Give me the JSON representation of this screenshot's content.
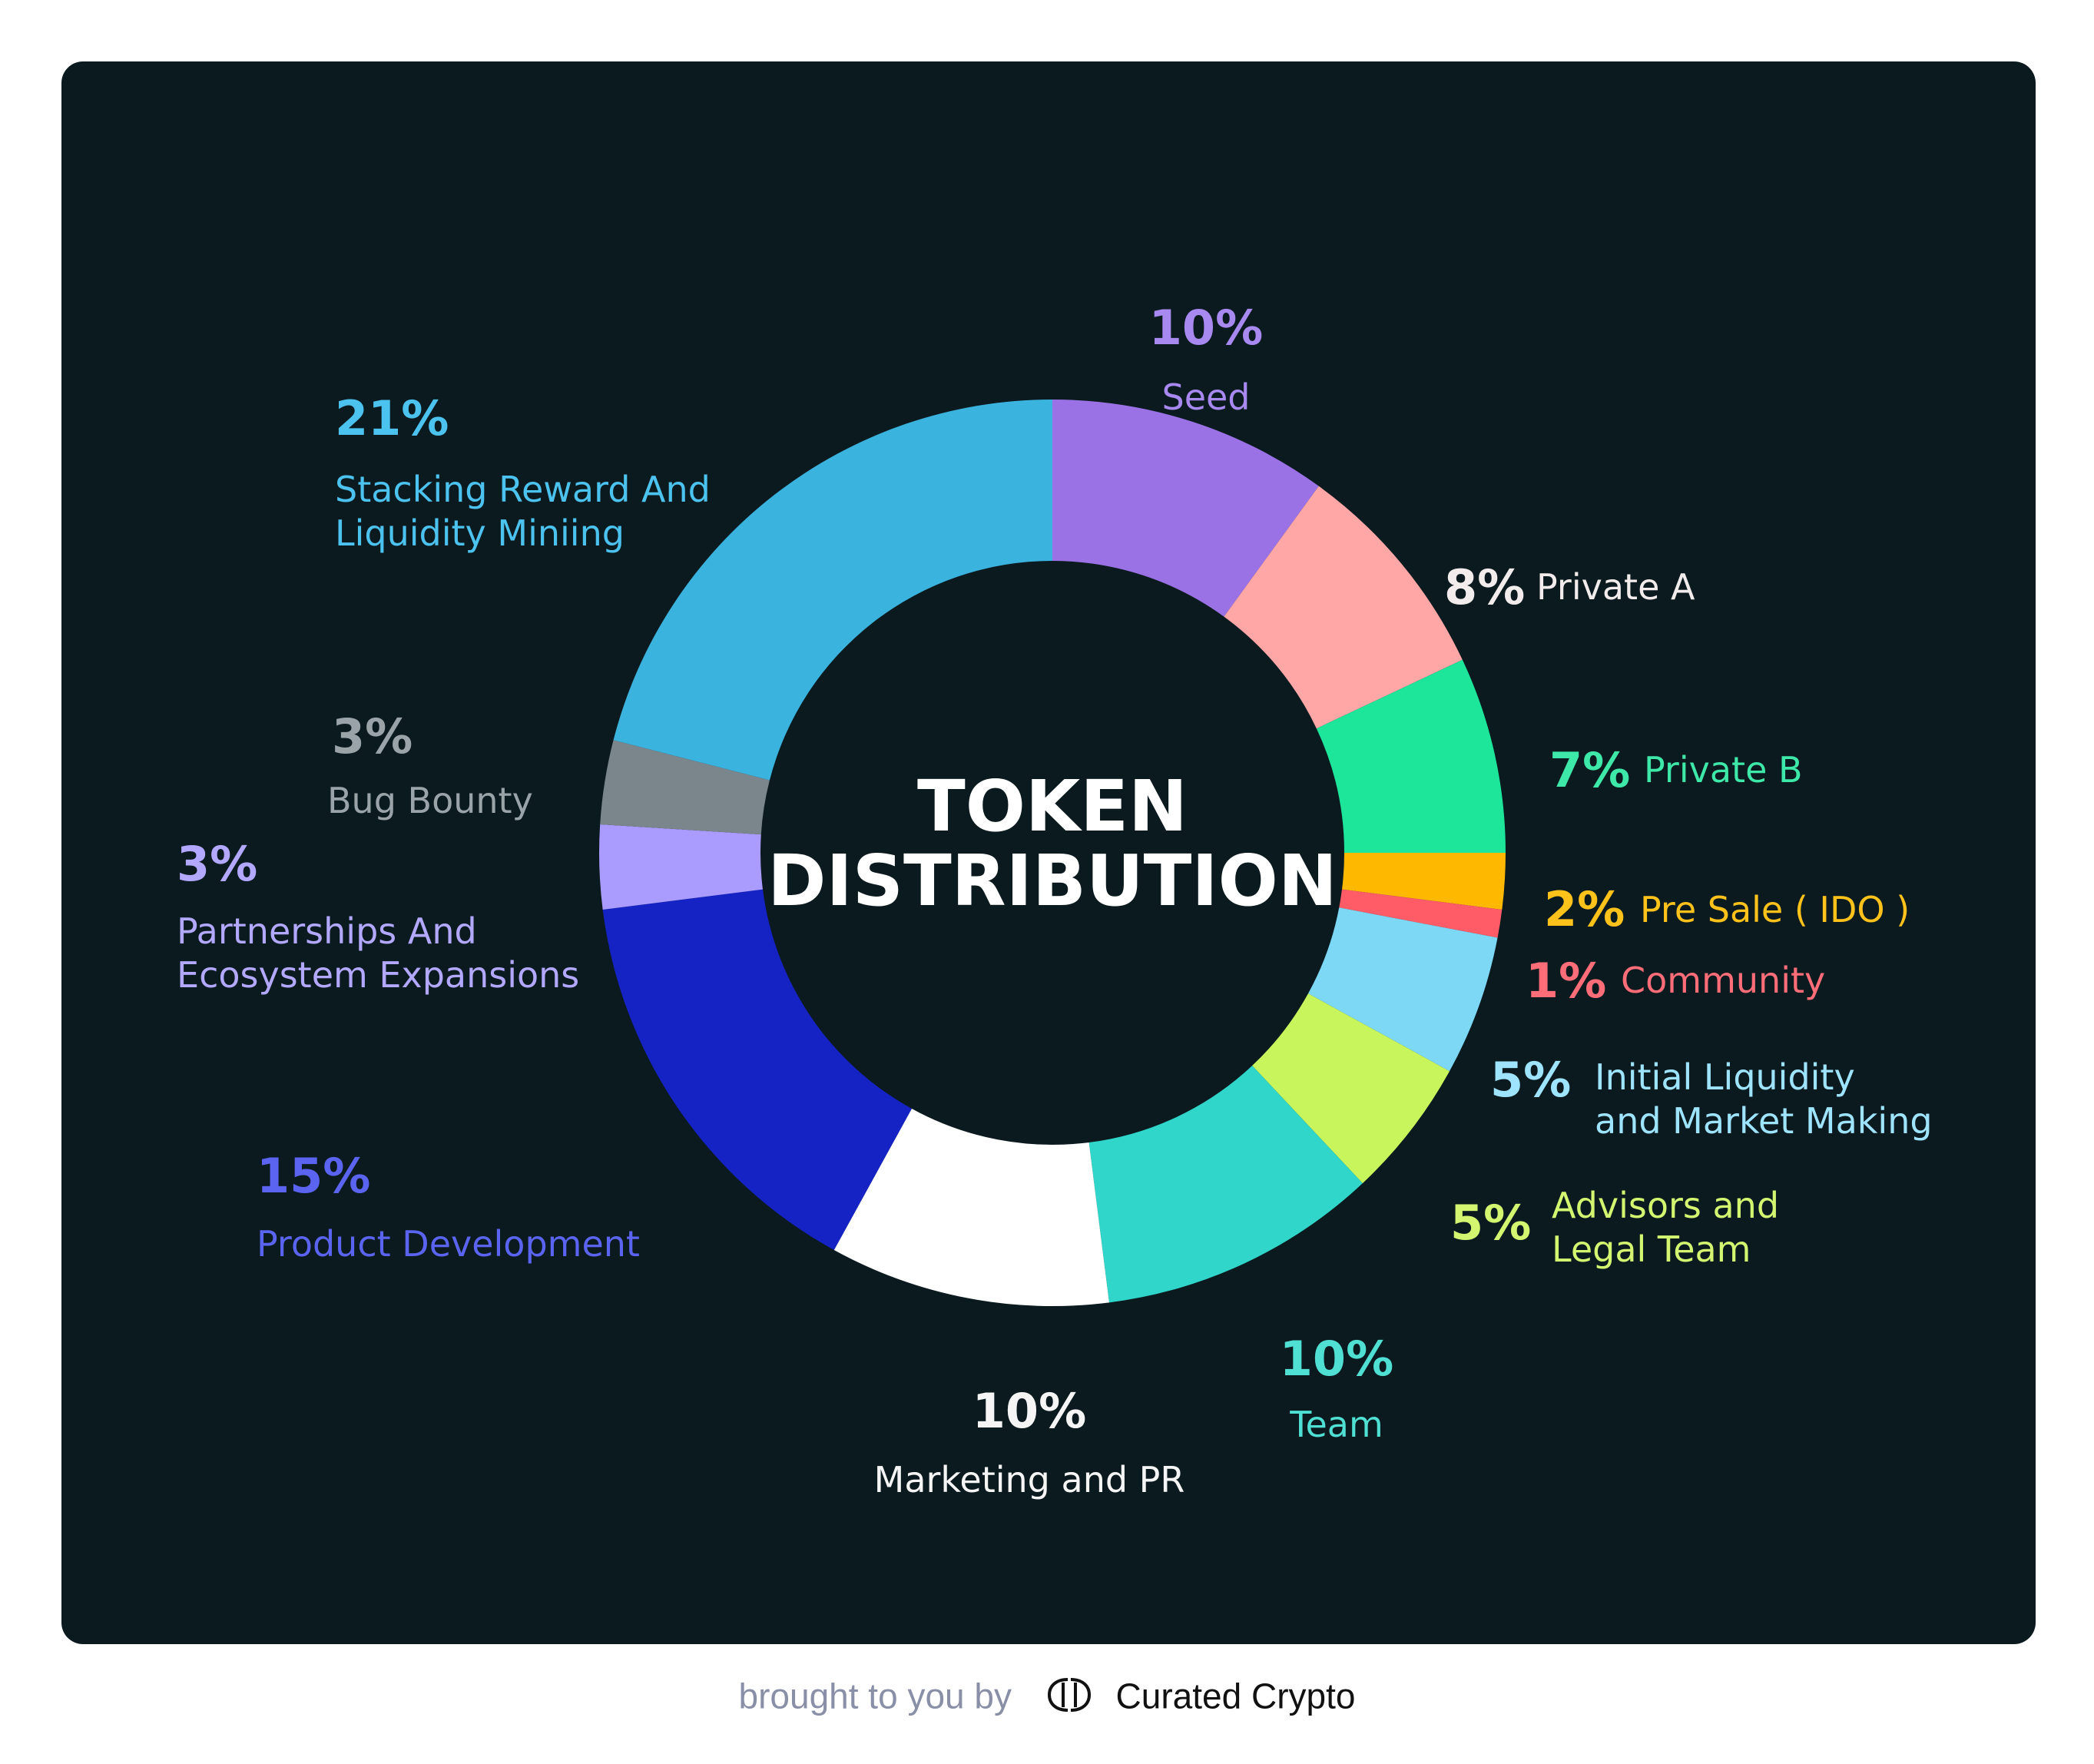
{
  "chart_data": {
    "type": "pie",
    "title": "TOKEN DISTRIBUTION",
    "slices": [
      {
        "label": "Seed",
        "pct_text": "10%",
        "value": 10,
        "color": "#9b72e6"
      },
      {
        "label": "Private A",
        "pct_text": "8%",
        "value": 8,
        "color": "#ffa6a6"
      },
      {
        "label": "Private B",
        "pct_text": "7%",
        "value": 7,
        "color": "#1de59a"
      },
      {
        "label": "Pre Sale ( IDO )",
        "pct_text": "2%",
        "value": 2,
        "color": "#ffb800"
      },
      {
        "label": "Community",
        "pct_text": "1%",
        "value": 1,
        "color": "#ff5c68"
      },
      {
        "label": "Initial Liquidity and Market Making",
        "pct_text": "5%",
        "value": 5,
        "color": "#7dd8f5"
      },
      {
        "label": "Advisors and Legal Team",
        "pct_text": "5%",
        "value": 5,
        "color": "#c8f55c"
      },
      {
        "label": "Team",
        "pct_text": "10%",
        "value": 10,
        "color": "#2fd6c9"
      },
      {
        "label": "Marketing and PR",
        "pct_text": "10%",
        "value": 10,
        "color": "#ffffff"
      },
      {
        "label": "Product Development",
        "pct_text": "15%",
        "value": 15,
        "color": "#1523c4"
      },
      {
        "label": "Partnerships And Ecosystem Expansions",
        "pct_text": "3%",
        "value": 3,
        "color": "#a99bff"
      },
      {
        "label": "Bug Bounty",
        "pct_text": "3%",
        "value": 3,
        "color": "#7b868c"
      },
      {
        "label": "Stacking Reward And Liquidity Miniing",
        "pct_text": "21%",
        "value": 21,
        "color": "#3bb3df"
      }
    ]
  },
  "label_lines": [
    [
      "Seed"
    ],
    [
      "Private A"
    ],
    [
      "Private B"
    ],
    [
      "Pre Sale ( IDO )"
    ],
    [
      "Community"
    ],
    [
      "Initial Liquidity",
      "and Market Making"
    ],
    [
      "Advisors and",
      "Legal Team"
    ],
    [
      "Team"
    ],
    [
      "Marketing and PR"
    ],
    [
      "Product Development"
    ],
    [
      "Partnerships And",
      "Ecosystem Expansions"
    ],
    [
      "Bug Bounty"
    ],
    [
      "Stacking Reward And",
      "Liquidity Miniing"
    ]
  ],
  "label_colors": [
    "#a889f0",
    "#f3ecec",
    "#3de8a8",
    "#ffc21a",
    "#ff6d78",
    "#9ee4ff",
    "#d4f570",
    "#4fdfd3",
    "#f5f5f5",
    "#5b64f0",
    "#b3a8ff",
    "#9aa3a8",
    "#4cc2ee"
  ],
  "center_title_lines": [
    "TOKEN",
    "DISTRIBUTION"
  ],
  "footer": {
    "prefix": "brought to you by",
    "brand": "Curated Crypto",
    "logo_icon": "curated-crypto-logo-icon"
  }
}
